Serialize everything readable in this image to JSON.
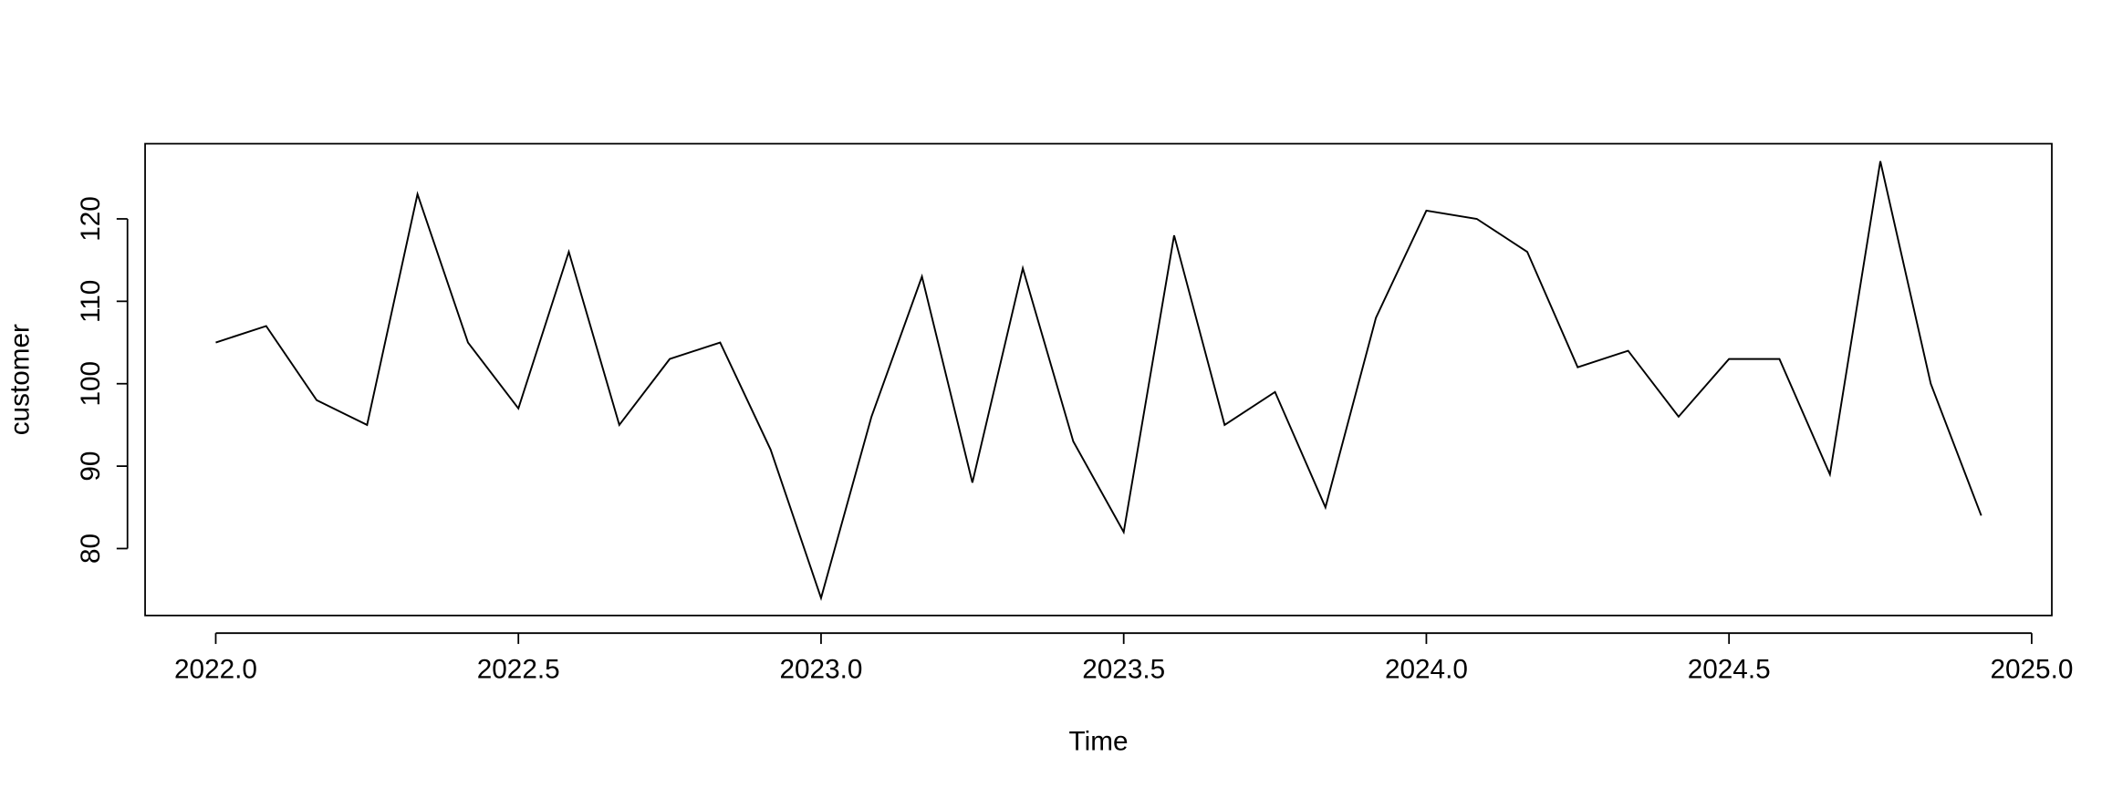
{
  "chart_data": {
    "type": "line",
    "x_label": "Time",
    "y_label": "customer",
    "x": [
      2022.0,
      2022.0833,
      2022.1667,
      2022.25,
      2022.3333,
      2022.4167,
      2022.5,
      2022.5833,
      2022.6667,
      2022.75,
      2022.8333,
      2022.9167,
      2023.0,
      2023.0833,
      2023.1667,
      2023.25,
      2023.3333,
      2023.4167,
      2023.5,
      2023.5833,
      2023.6667,
      2023.75,
      2023.8333,
      2023.9167,
      2024.0,
      2024.0833,
      2024.1667,
      2024.25,
      2024.3333,
      2024.4167,
      2024.5,
      2024.5833,
      2024.6667,
      2024.75,
      2024.8333,
      2024.9167
    ],
    "values": [
      105,
      107,
      98,
      95,
      123,
      105,
      97,
      116,
      95,
      103,
      105,
      92,
      74,
      96,
      113,
      88,
      114,
      93,
      82,
      118,
      95,
      99,
      85,
      108,
      121,
      120,
      116,
      102,
      104,
      96,
      103,
      103,
      89,
      127,
      100,
      84
    ],
    "color": "#000000",
    "xlim": [
      2021.8833,
      2025.0333
    ],
    "ylim": [
      71.88,
      129.12
    ],
    "xticks": [
      {
        "value": 2022.0,
        "label": "2022.0"
      },
      {
        "value": 2022.5,
        "label": "2022.5"
      },
      {
        "value": 2023.0,
        "label": "2023.0"
      },
      {
        "value": 2023.5,
        "label": "2023.5"
      },
      {
        "value": 2024.0,
        "label": "2024.0"
      },
      {
        "value": 2024.5,
        "label": "2024.5"
      },
      {
        "value": 2025.0,
        "label": "2025.0"
      }
    ],
    "yticks": [
      80,
      90,
      100,
      110,
      120
    ]
  }
}
